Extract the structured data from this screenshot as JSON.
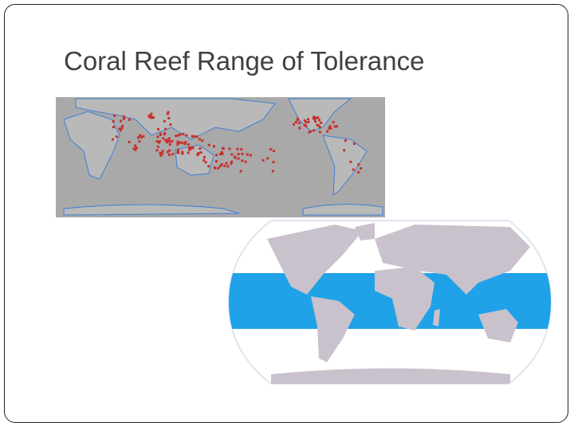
{
  "title": "Coral Reef Range of Tolerance"
}
